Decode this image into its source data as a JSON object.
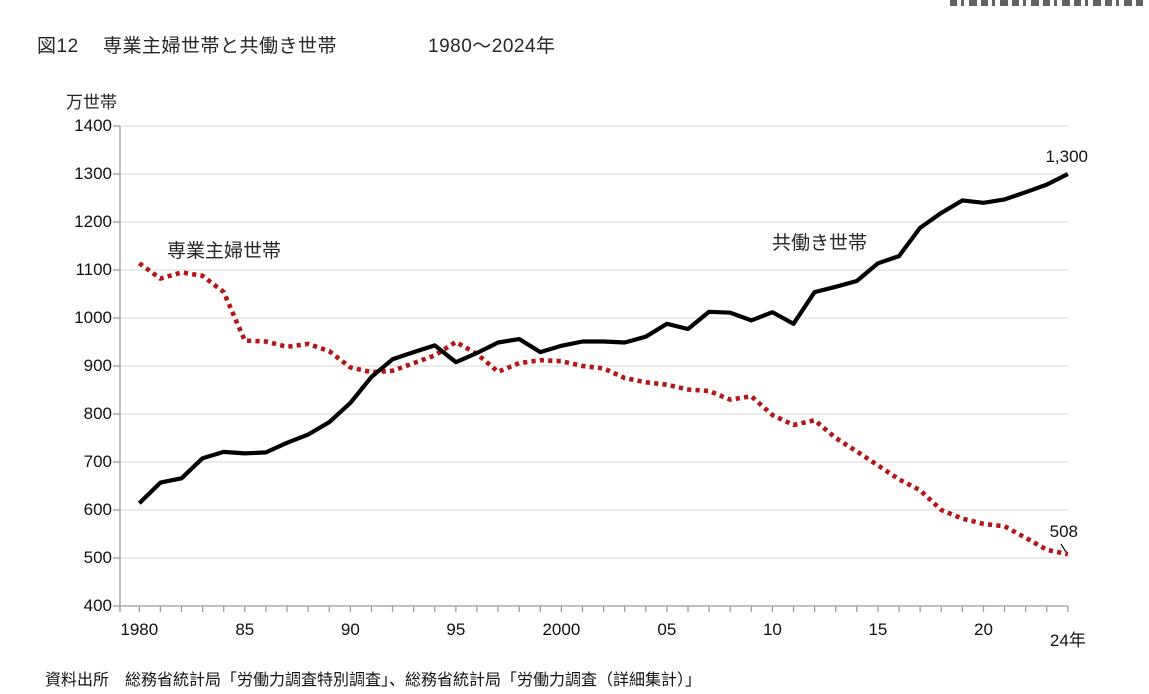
{
  "page": {
    "title_fig": "図12",
    "title_main": "専業主婦世帯と共働き世帯",
    "title_range": "1980〜2024年",
    "unit_label": "万世帯",
    "source": "資料出所　総務省統計局「労働力調査特別調査」、総務省統計局「労働力調査（詳細集計）」"
  },
  "chart_data": {
    "type": "line",
    "title": "専業主婦世帯と共働き世帯 1980〜2024年",
    "ylabel": "万世帯",
    "ylim": [
      400,
      1400
    ],
    "ytick_labels": [
      "1400",
      "1300",
      "1200",
      "1100",
      "1000",
      "900",
      "800",
      "700",
      "600",
      "500",
      "400"
    ],
    "grid": true,
    "legend_position": "inline-labels",
    "x_start": 1980,
    "x_end": 2024,
    "x": [
      1980,
      1981,
      1982,
      1983,
      1984,
      1985,
      1986,
      1987,
      1988,
      1989,
      1990,
      1991,
      1992,
      1993,
      1994,
      1995,
      1996,
      1997,
      1998,
      1999,
      2000,
      2001,
      2002,
      2003,
      2004,
      2005,
      2006,
      2007,
      2008,
      2009,
      2010,
      2011,
      2012,
      2013,
      2014,
      2015,
      2016,
      2017,
      2018,
      2019,
      2020,
      2021,
      2022,
      2023,
      2024
    ],
    "xticks": [
      {
        "label": "1980",
        "year": 1980,
        "dy": 0
      },
      {
        "label": "85",
        "year": 1985,
        "dy": 0
      },
      {
        "label": "90",
        "year": 1990,
        "dy": 0
      },
      {
        "label": "95",
        "year": 1995,
        "dy": 0
      },
      {
        "label": "2000",
        "year": 2000,
        "dy": 0
      },
      {
        "label": "05",
        "year": 2005,
        "dy": 0
      },
      {
        "label": "10",
        "year": 2010,
        "dy": 0
      },
      {
        "label": "15",
        "year": 2015,
        "dy": 0
      },
      {
        "label": "20",
        "year": 2020,
        "dy": 0
      },
      {
        "label": "24年",
        "year": 2024,
        "dy": 6
      }
    ],
    "series": [
      {
        "name": "専業主婦世帯",
        "style": "dotted",
        "color": "#b11717",
        "values": [
          1114,
          1082,
          1095,
          1088,
          1054,
          953,
          951,
          940,
          946,
          931,
          897,
          887,
          890,
          906,
          922,
          950,
          925,
          888,
          906,
          912,
          910,
          900,
          895,
          875,
          866,
          861,
          851,
          848,
          830,
          837,
          798,
          777,
          787,
          750,
          722,
          693,
          664,
          641,
          600,
          582,
          571,
          566,
          542,
          517,
          508
        ]
      },
      {
        "name": "共働き世帯",
        "style": "solid",
        "color": "#000000",
        "values": [
          614,
          657,
          666,
          708,
          721,
          718,
          720,
          740,
          757,
          783,
          823,
          877,
          914,
          929,
          943,
          908,
          927,
          949,
          956,
          929,
          942,
          951,
          951,
          949,
          961,
          988,
          977,
          1013,
          1011,
          995,
          1012,
          988,
          1054,
          1065,
          1077,
          1114,
          1129,
          1188,
          1219,
          1245,
          1240,
          1247,
          1262,
          1278,
          1300
        ]
      }
    ],
    "series_labels": [
      {
        "text": "専業主婦世帯",
        "left": 167,
        "top": 236
      },
      {
        "text": "共働き世帯",
        "left": 772,
        "top": 228
      }
    ],
    "annotations": [
      {
        "text": "1,300",
        "right": 61,
        "top": 147
      },
      {
        "text": "508",
        "right": 71,
        "top": 522,
        "leader": {
          "x1": 941,
          "y1": 418,
          "x2": 946,
          "y2": 426
        }
      }
    ],
    "colors": {
      "grid": "#d9d9d9",
      "axis": "#9c9c9c",
      "text": "#111111"
    }
  }
}
